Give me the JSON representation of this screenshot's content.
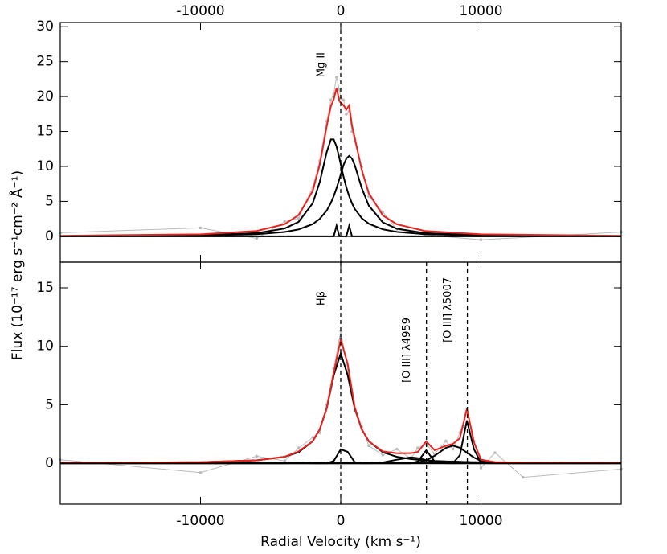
{
  "axis_labels": {
    "y": "Flux (10⁻¹⁷ erg s⁻¹cm⁻² Å⁻¹)",
    "x": "Radial Velocity (km s⁻¹)"
  },
  "chart_data": [
    {
      "type": "line",
      "xlim": [
        -20000,
        20000
      ],
      "ylim": [
        -3.7,
        30.6
      ],
      "yticks": [
        0,
        5,
        10,
        15,
        20,
        25,
        30
      ],
      "xticks": [
        -10000,
        0,
        10000
      ],
      "xtick_labels": "top",
      "x": [
        -20000,
        -10000,
        -6000,
        -4000,
        -3000,
        -2000,
        -1500,
        -1000,
        -700,
        -500,
        -300,
        -100,
        0,
        200,
        400,
        600,
        800,
        1000,
        1500,
        2000,
        3000,
        4000,
        6000,
        10000,
        20000
      ],
      "hline": 0,
      "vlines": [
        {
          "x": 0,
          "label": "Mg II"
        }
      ],
      "series": [
        {
          "color": "#bbbbbb",
          "markers": true,
          "values": [
            0.5,
            1.2,
            -0.3,
            2.1,
            2.6,
            7.0,
            10.8,
            16.5,
            19.5,
            20.4,
            22.8,
            21.0,
            19.8,
            19.5,
            17.5,
            17.9,
            15.0,
            13.6,
            9.9,
            5.7,
            3.5,
            1.0,
            0.2,
            -0.5,
            0.6
          ]
        },
        {
          "color": "#000000",
          "values": [
            0.04,
            0.16,
            0.46,
            1.11,
            2.07,
            4.73,
            7.73,
            12.07,
            13.86,
            13.86,
            12.84,
            11.2,
            10.29,
            8.54,
            7.0,
            5.74,
            4.73,
            3.93,
            2.59,
            1.8,
            1.0,
            0.63,
            0.31,
            0.12,
            0.03
          ]
        },
        {
          "color": "#000000",
          "values": [
            0.03,
            0.12,
            0.31,
            0.62,
            0.98,
            1.74,
            2.48,
            3.69,
            4.79,
            5.75,
            6.89,
            8.18,
            8.85,
            10.2,
            11.13,
            11.5,
            11.13,
            10.2,
            6.89,
            4.39,
            2.0,
            1.09,
            0.46,
            0.16,
            0.04
          ]
        },
        {
          "color": "#000000",
          "values": [
            0,
            0,
            0,
            0,
            0,
            0,
            0,
            0,
            0,
            0,
            1.5,
            0,
            0,
            0,
            0,
            1.5,
            0,
            0,
            0,
            0,
            0,
            0,
            0,
            0,
            0
          ]
        },
        {
          "color": "#e8231e",
          "values": [
            0.07,
            0.28,
            0.77,
            1.73,
            3.05,
            6.47,
            10.21,
            15.76,
            18.65,
            19.61,
            21.23,
            19.38,
            19.14,
            18.74,
            18.13,
            18.74,
            15.86,
            14.13,
            9.48,
            6.19,
            3.0,
            1.72,
            0.77,
            0.28,
            0.07
          ]
        }
      ]
    },
    {
      "type": "line",
      "xlim": [
        -20000,
        20000
      ],
      "ylim": [
        -3.5,
        17.2
      ],
      "yticks": [
        0,
        5,
        10,
        15
      ],
      "xticks": [
        -10000,
        0,
        10000
      ],
      "xtick_labels": "bottom",
      "x": [
        -20000,
        -10000,
        -6000,
        -4000,
        -3000,
        -2000,
        -1500,
        -1000,
        -500,
        0,
        500,
        1000,
        1500,
        2000,
        3000,
        4000,
        5000,
        5500,
        6100,
        6700,
        7500,
        8000,
        8500,
        9000,
        9500,
        10000,
        11000,
        13000,
        20000
      ],
      "hline": 0,
      "vlines": [
        {
          "x": 0,
          "label": "Hβ"
        },
        {
          "x": 6114,
          "label": "[O III] λ4959"
        },
        {
          "x": 9029,
          "label": "[O III] λ5007"
        }
      ],
      "series": [
        {
          "color": "#bbbbbb",
          "markers": true,
          "values": [
            0.3,
            -0.8,
            0.6,
            0.2,
            1.3,
            2.2,
            2.6,
            5.0,
            8.1,
            11.3,
            8.0,
            4.5,
            3.1,
            1.5,
            0.7,
            1.2,
            0.4,
            1.3,
            1.6,
            0.8,
            1.9,
            1.2,
            2.6,
            4.4,
            1.9,
            -0.4,
            0.9,
            -1.2,
            -0.5
          ]
        },
        {
          "color": "#000000",
          "values": [
            0.02,
            0.09,
            0.25,
            0.55,
            0.94,
            1.88,
            2.89,
            4.7,
            7.52,
            9.4,
            7.52,
            4.7,
            2.89,
            1.88,
            0.94,
            0.55,
            0.36,
            0.3,
            0.25,
            0.2,
            0.16,
            0.15,
            0.13,
            0.11,
            0.1,
            0.09,
            0.08,
            0.06,
            0.02
          ]
        },
        {
          "color": "#000000",
          "values": [
            0,
            0,
            0,
            0,
            0,
            0,
            0,
            0,
            0.19,
            1.19,
            0.97,
            0.1,
            0,
            0,
            0,
            0,
            0,
            0,
            0,
            0,
            0,
            0,
            0,
            0,
            0,
            0,
            0,
            0,
            0
          ]
        },
        {
          "color": "#000000",
          "values": [
            0,
            0,
            0,
            0,
            0,
            0,
            0,
            0,
            0,
            0,
            0,
            0,
            0,
            0,
            0,
            0,
            0,
            0.15,
            1.1,
            0.15,
            0,
            0,
            0,
            0,
            0,
            0,
            0,
            0,
            0
          ]
        },
        {
          "color": "#000000",
          "values": [
            0,
            0,
            0,
            0,
            0.07,
            0,
            0,
            0,
            0,
            0,
            0,
            0,
            0,
            0,
            0.07,
            0.3,
            0.5,
            0.44,
            0.27,
            0.12,
            0.02,
            0,
            0,
            0,
            0,
            0,
            0,
            0,
            0
          ]
        },
        {
          "color": "#000000",
          "values": [
            0,
            0,
            0,
            0,
            0,
            0,
            0,
            0,
            0,
            0,
            0,
            0,
            0,
            0,
            0,
            0,
            0,
            0,
            0,
            0,
            0,
            0,
            0.69,
            3.65,
            1.2,
            0.02,
            0,
            0,
            0
          ]
        },
        {
          "color": "#000000",
          "values": [
            0,
            0,
            0,
            0,
            0,
            0,
            0,
            0,
            0,
            0,
            0,
            0,
            0,
            0,
            0,
            0,
            0,
            0.07,
            0.25,
            0.64,
            1.32,
            1.5,
            1.32,
            0.91,
            0.49,
            0.2,
            0.02,
            0,
            0
          ]
        },
        {
          "color": "#e8231e",
          "values": [
            0.02,
            0.09,
            0.25,
            0.55,
            1.01,
            1.88,
            2.89,
            4.7,
            7.71,
            10.59,
            8.49,
            4.8,
            2.89,
            1.88,
            1.01,
            0.85,
            0.86,
            0.96,
            1.87,
            1.11,
            1.5,
            1.65,
            2.14,
            4.67,
            1.79,
            0.31,
            0.1,
            0.06,
            0.02
          ]
        }
      ]
    }
  ]
}
